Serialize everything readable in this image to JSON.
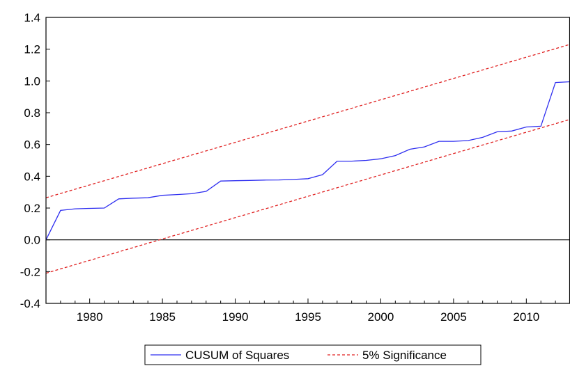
{
  "chart_data": {
    "type": "line",
    "xlim": [
      1977,
      2013
    ],
    "ylim": [
      -0.4,
      1.4
    ],
    "x_ticks": [
      1980,
      1985,
      1990,
      1995,
      2000,
      2005,
      2010
    ],
    "y_ticks": [
      1.4,
      1.2,
      1.0,
      0.8,
      0.6,
      0.4,
      0.2,
      0.0,
      -0.2,
      -0.4
    ],
    "y_tick_labels": [
      "1.4",
      "1.2",
      "1.0",
      "0.8",
      "0.6",
      "0.4",
      "0.2",
      "0.0",
      "-0.2",
      "-0.4"
    ],
    "zero_line": true,
    "grid": false,
    "legend_position": "bottom-center",
    "series": [
      {
        "name": "CUSUM of Squares",
        "color": "#2e2ef0",
        "style": "solid",
        "x": [
          1977,
          1978,
          1979,
          1980,
          1981,
          1982,
          1983,
          1984,
          1985,
          1986,
          1987,
          1988,
          1989,
          1990,
          1991,
          1992,
          1993,
          1994,
          1995,
          1996,
          1997,
          1998,
          1999,
          2000,
          2001,
          2002,
          2003,
          2004,
          2005,
          2006,
          2007,
          2008,
          2009,
          2010,
          2011,
          2012,
          2013
        ],
        "y": [
          0.0,
          0.185,
          0.195,
          0.198,
          0.2,
          0.258,
          0.262,
          0.265,
          0.28,
          0.285,
          0.29,
          0.305,
          0.37,
          0.372,
          0.374,
          0.376,
          0.377,
          0.38,
          0.385,
          0.41,
          0.495,
          0.495,
          0.5,
          0.51,
          0.53,
          0.57,
          0.585,
          0.62,
          0.62,
          0.625,
          0.645,
          0.68,
          0.685,
          0.71,
          0.715,
          0.99,
          0.995
        ]
      },
      {
        "name": "5% Significance",
        "color": "#e02020",
        "style": "dashed",
        "x": [
          1977,
          2013
        ],
        "y": [
          0.265,
          1.23
        ]
      },
      {
        "name": "5% Significance",
        "color": "#e02020",
        "style": "dashed",
        "x": [
          1977,
          2013
        ],
        "y": [
          -0.21,
          0.758
        ]
      }
    ],
    "legend": [
      {
        "label": "CUSUM of Squares",
        "color": "#2e2ef0",
        "style": "solid"
      },
      {
        "label": "5% Significance",
        "color": "#e02020",
        "style": "dashed"
      }
    ]
  }
}
